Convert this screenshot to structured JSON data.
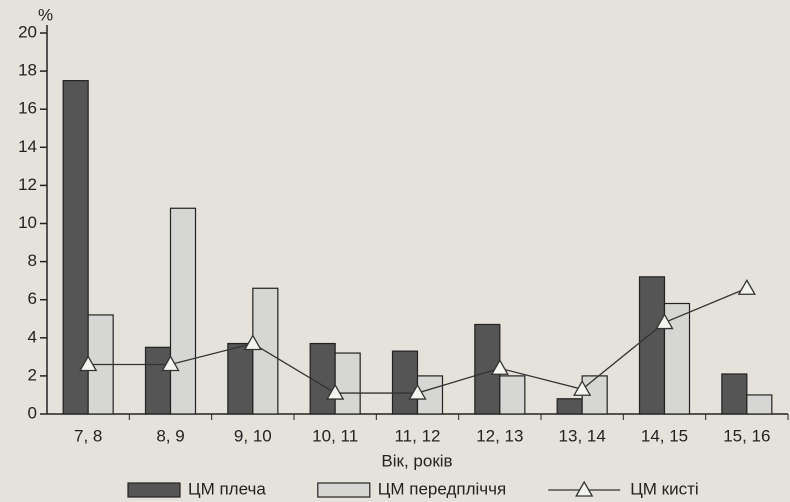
{
  "chart_data": {
    "type": "bar",
    "y_unit": "%",
    "x_label": "Вік, років",
    "categories": [
      "7, 8",
      "8, 9",
      "9, 10",
      "10, 11",
      "11, 12",
      "12, 13",
      "13, 14",
      "14, 15",
      "15, 16"
    ],
    "series": [
      {
        "name": "ЦМ плеча",
        "type": "bar",
        "color": "#555555",
        "values": [
          17.5,
          3.5,
          3.7,
          3.7,
          3.3,
          4.7,
          0.8,
          7.2,
          2.1
        ]
      },
      {
        "name": "ЦМ передпліччя",
        "type": "bar",
        "color": "#d6d6d4",
        "values": [
          5.2,
          10.8,
          6.6,
          3.2,
          2.0,
          2.0,
          2.0,
          5.8,
          1.0
        ]
      },
      {
        "name": "ЦМ кисті",
        "type": "line",
        "color": "#333333",
        "values": [
          2.6,
          2.6,
          3.7,
          1.1,
          1.1,
          2.4,
          1.3,
          4.8,
          6.6
        ]
      }
    ],
    "ylim": [
      0,
      20
    ],
    "yticks": [
      0,
      2,
      4,
      6,
      8,
      10,
      12,
      14,
      16,
      18,
      20
    ]
  }
}
